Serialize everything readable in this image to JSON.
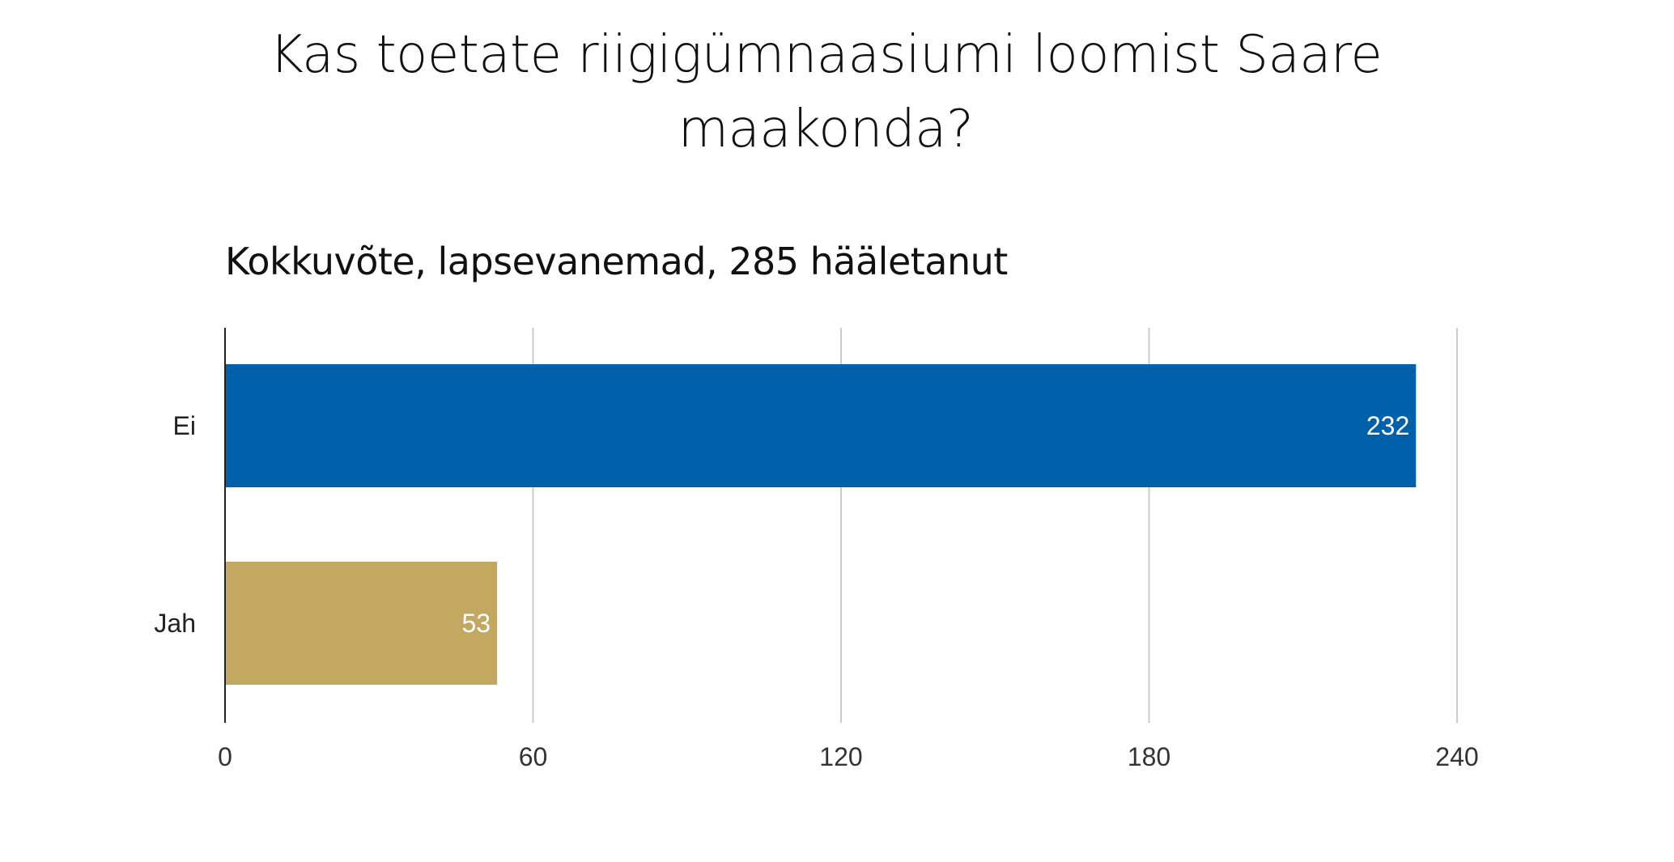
{
  "chart_data": {
    "type": "bar",
    "orientation": "horizontal",
    "title": "Kas toetate riigigümnaasiumi loomist Saare maakonda?",
    "subtitle": "Kokkuvõte, lapsevanemad, 285 hääletanut",
    "categories": [
      "Ei",
      "Jah"
    ],
    "values": [
      232,
      53
    ],
    "bar_colors": [
      "#0060aa",
      "#c3a862"
    ],
    "value_labels": [
      "232",
      "53"
    ],
    "xlim": [
      0,
      240
    ],
    "ticks": [
      0,
      60,
      120,
      180,
      240
    ],
    "tick_labels": [
      "0",
      "60",
      "120",
      "180",
      "240"
    ],
    "grid": true,
    "gridline_color": "#cccccc",
    "legend": "none",
    "xlabel": "",
    "ylabel": ""
  }
}
